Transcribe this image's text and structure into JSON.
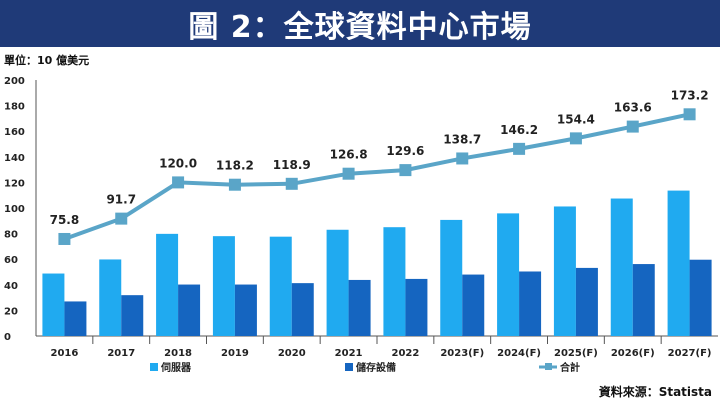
{
  "header": {
    "title": "圖 2：全球資料中心市場"
  },
  "unit_label": "單位：10 億美元",
  "source_label": "資料來源：Statista",
  "chart_data": {
    "type": "bar",
    "categories": [
      "2016",
      "2017",
      "2018",
      "2019",
      "2020",
      "2021",
      "2022",
      "2023(F)",
      "2024(F)",
      "2025(F)",
      "2026(F)",
      "2027(F)"
    ],
    "series": [
      {
        "name": "伺服器",
        "type": "bar",
        "color": "#20aaf0",
        "values": [
          48.8,
          59.8,
          79.8,
          78.0,
          77.6,
          83.0,
          85.0,
          90.7,
          95.8,
          101.2,
          107.4,
          113.6
        ]
      },
      {
        "name": "儲存設備",
        "type": "bar",
        "color": "#1565c0",
        "values": [
          27.0,
          31.9,
          40.2,
          40.2,
          41.3,
          43.8,
          44.6,
          48.0,
          50.4,
          53.2,
          56.2,
          59.6
        ]
      },
      {
        "name": "合計",
        "type": "line",
        "color": "#5aa5c8",
        "values": [
          75.8,
          91.7,
          120.0,
          118.2,
          118.9,
          126.8,
          129.6,
          138.7,
          146.2,
          154.4,
          163.6,
          173.2
        ]
      }
    ],
    "data_labels": [
      "75.8",
      "91.7",
      "120.0",
      "118.2",
      "118.9",
      "126.8",
      "129.6",
      "138.7",
      "146.2",
      "154.4",
      "163.6",
      "173.2"
    ],
    "y_ticks": [
      "0",
      "20",
      "40",
      "60",
      "80",
      "100",
      "120",
      "140",
      "160",
      "180",
      "200"
    ],
    "ylim": [
      0,
      200
    ],
    "grid": false,
    "legend_position": "bottom"
  }
}
